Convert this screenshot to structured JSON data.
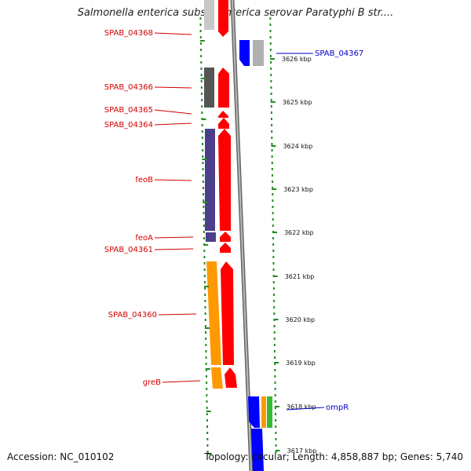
{
  "title": "Salmonella enterica subsp. enterica serovar Paratyphi B str....",
  "footer": {
    "accession": "Accession: NC_010102",
    "info": "Topology: circular; Length: 4,858,887 bp; Genes: 5,740"
  },
  "scale": {
    "ticks": [
      "3626 kbp",
      "3625 kbp",
      "3624 kbp",
      "3623 kbp",
      "3622 kbp",
      "3621 kbp",
      "3620 kbp",
      "3619 kbp",
      "3618 kbp",
      "3617 kbp"
    ]
  },
  "genes_left": [
    {
      "label": "SPAB_04368",
      "color": "#d40000"
    },
    {
      "label": "SPAB_04366",
      "color": "#d40000"
    },
    {
      "label": "SPAB_04365",
      "color": "#d40000"
    },
    {
      "label": "SPAB_04364",
      "color": "#d40000"
    },
    {
      "label": "feoB",
      "color": "#d40000"
    },
    {
      "label": "feoA",
      "color": "#d40000"
    },
    {
      "label": "SPAB_04361",
      "color": "#d40000"
    },
    {
      "label": "SPAB_04360",
      "color": "#d40000"
    },
    {
      "label": "greB",
      "color": "#d40000"
    }
  ],
  "genes_right": [
    {
      "label": "SPAB_04367",
      "color": "#0000c8"
    },
    {
      "label": "ompR",
      "color": "#0000c8"
    }
  ],
  "colors": {
    "forward_strand": "#ff0000",
    "reverse_strand": "#0000ff",
    "backbone": "#888888",
    "dots": "#228b22"
  }
}
